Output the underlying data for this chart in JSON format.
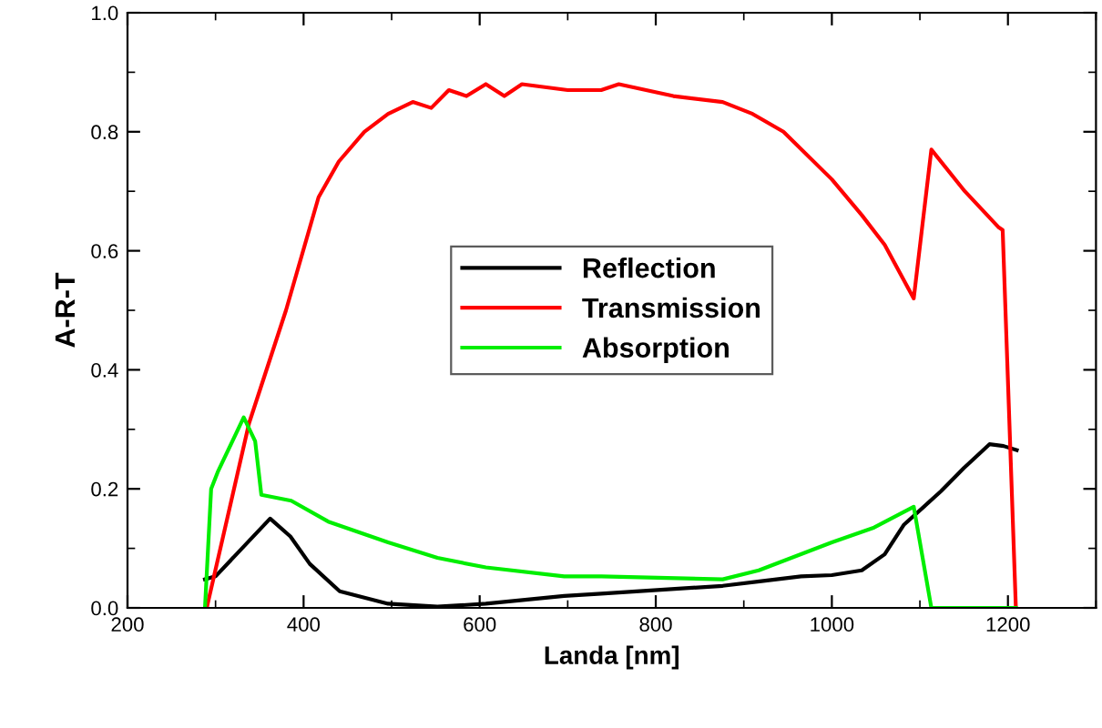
{
  "chart_data": {
    "type": "line",
    "xlabel": "Landa [nm]",
    "ylabel": "A-R-T",
    "xlim": [
      200,
      1300
    ],
    "xticks": [
      200,
      400,
      600,
      800,
      1000,
      1200
    ],
    "ylim": [
      0,
      1.0
    ],
    "yticks": [
      {
        "value": 0,
        "label": "0.0"
      },
      0.2,
      0.4,
      0.6,
      0.8,
      {
        "value": 1.0,
        "label": "1.0"
      }
    ],
    "grid": false,
    "legend": "center",
    "marker": "none",
    "line_style": "solid",
    "series": [
      {
        "name": "Reflection",
        "color": "#000000",
        "x": [
          288,
          300,
          330,
          362,
          385,
          407,
          441,
          496,
          552,
          607,
          696,
          738,
          876,
          920,
          965,
          1000,
          1034,
          1060,
          1082,
          1124,
          1150,
          1179,
          1195,
          1210
        ],
        "values": [
          0.048,
          0.053,
          0.1,
          0.15,
          0.12,
          0.074,
          0.028,
          0.007,
          0.002,
          0.007,
          0.02,
          0.024,
          0.037,
          0.045,
          0.053,
          0.055,
          0.063,
          0.09,
          0.14,
          0.196,
          0.235,
          0.275,
          0.272,
          0.265
        ]
      },
      {
        "name": "Transmission",
        "color": "#ff0000",
        "x": [
          290,
          338,
          380,
          417,
          440,
          469,
          496,
          524,
          545,
          565,
          585,
          607,
          628,
          648,
          700,
          738,
          758,
          820,
          876,
          910,
          945,
          1000,
          1034,
          1060,
          1093,
          1113,
          1151,
          1189,
          1194,
          1209
        ],
        "values": [
          0,
          0.31,
          0.5,
          0.69,
          0.75,
          0.8,
          0.83,
          0.85,
          0.84,
          0.87,
          0.86,
          0.88,
          0.86,
          0.88,
          0.87,
          0.87,
          0.88,
          0.86,
          0.85,
          0.83,
          0.8,
          0.72,
          0.66,
          0.61,
          0.52,
          0.77,
          0.7,
          0.64,
          0.635,
          0
        ]
      },
      {
        "name": "Absorption",
        "color": "#00ee00",
        "x": [
          288,
          295,
          303,
          332,
          345,
          352,
          386,
          428,
          496,
          552,
          607,
          696,
          738,
          876,
          917,
          1000,
          1048,
          1093,
          1113,
          1209
        ],
        "values": [
          0,
          0.2,
          0.23,
          0.32,
          0.28,
          0.19,
          0.18,
          0.145,
          0.11,
          0.084,
          0.068,
          0.053,
          0.053,
          0.048,
          0.063,
          0.11,
          0.135,
          0.17,
          0,
          0
        ]
      }
    ]
  }
}
